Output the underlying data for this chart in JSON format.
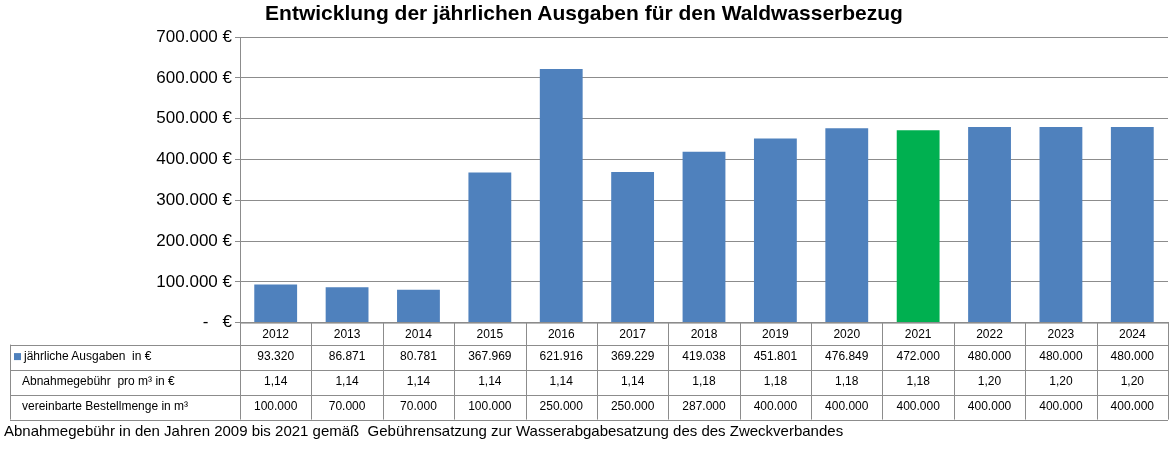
{
  "chart_data": {
    "type": "bar",
    "title": "Entwicklung der jährlichen Ausgaben für den Waldwasserbezug",
    "categories": [
      "2012",
      "2013",
      "2014",
      "2015",
      "2016",
      "2017",
      "2018",
      "2019",
      "2020",
      "2021",
      "2022",
      "2023",
      "2024"
    ],
    "series": [
      {
        "name": "jährliche Ausgaben  in €",
        "color": "#4f81bd",
        "colors": [
          "#4f81bd",
          "#4f81bd",
          "#4f81bd",
          "#4f81bd",
          "#4f81bd",
          "#4f81bd",
          "#4f81bd",
          "#4f81bd",
          "#4f81bd",
          "#00b050",
          "#4f81bd",
          "#4f81bd",
          "#4f81bd"
        ],
        "values": [
          93320,
          86871,
          80781,
          367969,
          621916,
          369229,
          419038,
          451801,
          476849,
          472000,
          480000,
          480000,
          480000
        ],
        "value_labels": [
          "93.320",
          "86.871",
          "80.781",
          "367.969",
          "621.916",
          "369.229",
          "419.038",
          "451.801",
          "476.849",
          "472.000",
          "480.000",
          "480.000",
          "480.000"
        ]
      },
      {
        "name": "Abnahmegebühr  pro m³ in €",
        "type": "other",
        "values": [
          null,
          null,
          null,
          null,
          null,
          null,
          null,
          null,
          null,
          null,
          null,
          null,
          null
        ],
        "value_labels": [
          "1,14",
          "1,14",
          "1,14",
          "1,14",
          "1,14",
          "1,14",
          "1,18",
          "1,18",
          "1,18",
          "1,18",
          "1,20",
          "1,20",
          "1,20"
        ]
      },
      {
        "name": "vereinbarte Bestellmenge in m³",
        "type": "other",
        "values": [
          null,
          null,
          null,
          null,
          null,
          null,
          null,
          null,
          null,
          null,
          null,
          null,
          null
        ],
        "value_labels": [
          "100.000",
          "70.000",
          "70.000",
          "100.000",
          "250.000",
          "250.000",
          "287.000",
          "400.000",
          "400.000",
          "400.000",
          "400.000",
          "400.000",
          "400.000"
        ]
      }
    ],
    "ylim": [
      0,
      700000
    ],
    "yticks": [
      {
        "value": 0,
        "label": "-   €"
      },
      {
        "value": 100000,
        "label": "100.000 €"
      },
      {
        "value": 200000,
        "label": "200.000 €"
      },
      {
        "value": 300000,
        "label": "300.000 €"
      },
      {
        "value": 400000,
        "label": "400.000 €"
      },
      {
        "value": 500000,
        "label": "500.000 €"
      },
      {
        "value": 600000,
        "label": "600.000 €"
      },
      {
        "value": 700000,
        "label": "700.000 €"
      }
    ],
    "grid": "y",
    "legend": "bottom left",
    "annotations": [
      "Abnahmegebühr in den Jahren 2009 bis 2021 gemäß  Gebührensatzung zur Wasserabgabesatzung des des Zweckverbandes"
    ]
  }
}
